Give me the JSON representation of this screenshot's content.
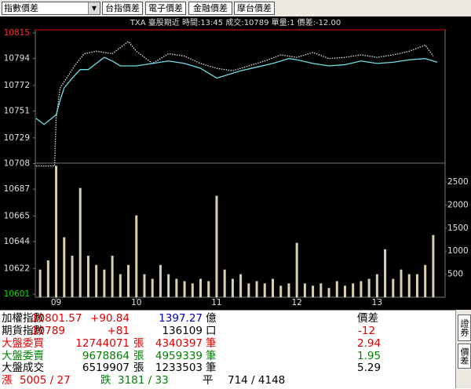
{
  "toolbar": {
    "dropdown": "指數價差",
    "buttons": [
      "台指價差",
      "電子價差",
      "金融價差",
      "摩台價差"
    ]
  },
  "chart_data": {
    "type": "line",
    "title": "TXA  臺股期近 時間:13:45 成交:10789 單量:1 價差:-12.00",
    "xlim": [
      8.75,
      13.75
    ],
    "xticks": [
      {
        "value": 9,
        "label": "09"
      },
      {
        "value": 10,
        "label": "10"
      },
      {
        "value": 11,
        "label": "11"
      },
      {
        "value": 12,
        "label": "12"
      },
      {
        "value": 13,
        "label": "13"
      }
    ],
    "ylim": [
      10601,
      10815
    ],
    "yticks": [
      10601,
      10622,
      10644,
      10665,
      10687,
      10708,
      10729,
      10751,
      10772,
      10794,
      10815
    ],
    "y2lim": [
      0,
      5800
    ],
    "y2ticks": [
      500,
      1000,
      1500,
      2000,
      2500
    ],
    "series": [
      {
        "type": "bar",
        "axis": "y2",
        "color": "#d8d0b0",
        "x": [
          8.8,
          8.9,
          9.0,
          9.1,
          9.2,
          9.3,
          9.4,
          9.5,
          9.6,
          9.7,
          9.8,
          9.9,
          10.0,
          10.1,
          10.2,
          10.3,
          10.4,
          10.5,
          10.6,
          10.7,
          10.8,
          10.9,
          11.0,
          11.1,
          11.2,
          11.3,
          11.4,
          11.5,
          11.6,
          11.7,
          11.8,
          11.9,
          12.0,
          12.1,
          12.2,
          12.3,
          12.4,
          12.5,
          12.6,
          12.7,
          12.8,
          12.9,
          13.0,
          13.1,
          13.2,
          13.3,
          13.4,
          13.5,
          13.6,
          13.7
        ],
        "values": [
          600,
          800,
          2850,
          1300,
          900,
          2370,
          900,
          700,
          600,
          900,
          500,
          700,
          1775,
          500,
          400,
          700,
          500,
          400,
          350,
          300,
          400,
          350,
          2200,
          600,
          400,
          500,
          300,
          350,
          300,
          400,
          250,
          300,
          1180,
          300,
          250,
          300,
          200,
          350,
          250,
          300,
          350,
          400,
          500,
          1040,
          400,
          600,
          500,
          500,
          700,
          1350
        ]
      },
      {
        "color": "#e0e0e0",
        "dashed": true,
        "x": [
          8.75,
          8.98,
          9.0,
          9.05,
          9.15,
          9.25,
          9.35,
          9.5,
          9.7,
          9.9,
          10.0,
          10.2,
          10.4,
          10.6,
          10.8,
          11.0,
          11.2,
          11.4,
          11.6,
          11.8,
          12.0,
          12.2,
          12.4,
          12.6,
          12.8,
          13.0,
          13.2,
          13.4,
          13.6,
          13.7
        ],
        "values": [
          10706,
          10706,
          10745,
          10770,
          10780,
          10790,
          10798,
          10800,
          10798,
          10808,
          10800,
          10790,
          10798,
          10796,
          10790,
          10786,
          10784,
          10788,
          10792,
          10797,
          10795,
          10799,
          10794,
          10795,
          10797,
          10795,
          10797,
          10800,
          10805,
          10796
        ]
      },
      {
        "color": "#6fe0e8",
        "x": [
          8.75,
          8.85,
          9.0,
          9.05,
          9.1,
          9.2,
          9.3,
          9.4,
          9.5,
          9.6,
          9.7,
          9.8,
          10.0,
          10.2,
          10.4,
          10.6,
          10.8,
          11.0,
          11.1,
          11.3,
          11.5,
          11.7,
          11.9,
          12.0,
          12.2,
          12.4,
          12.6,
          12.8,
          13.0,
          13.2,
          13.4,
          13.6,
          13.75
        ],
        "values": [
          10745,
          10740,
          10748,
          10760,
          10770,
          10778,
          10785,
          10785,
          10790,
          10795,
          10792,
          10788,
          10788,
          10790,
          10792,
          10790,
          10786,
          10778,
          10780,
          10784,
          10787,
          10790,
          10794,
          10793,
          10790,
          10788,
          10789,
          10792,
          10790,
          10791,
          10793,
          10794,
          10791
        ]
      }
    ]
  },
  "table": {
    "rows": [
      [
        "加權指數",
        "10801.57",
        "+90.84",
        "1397.27",
        "億",
        "價差"
      ],
      [
        "期貨指數",
        "10789",
        "+81",
        "136109",
        "口",
        "-12"
      ],
      [
        "大盤委買",
        "12744071",
        "張",
        "4340397",
        "筆",
        "2.94"
      ],
      [
        "大盤委賣",
        "9678864",
        "張",
        "4959339",
        "筆",
        "1.95"
      ],
      [
        "大盤成交",
        "6519907",
        "張",
        "1233503",
        "筆",
        "5.29"
      ],
      [
        "漲",
        "5005 / 27",
        "跌",
        "3181 / 33",
        "平",
        "714 / 4148"
      ]
    ]
  },
  "side_tabs": [
    "證券",
    "價差"
  ]
}
